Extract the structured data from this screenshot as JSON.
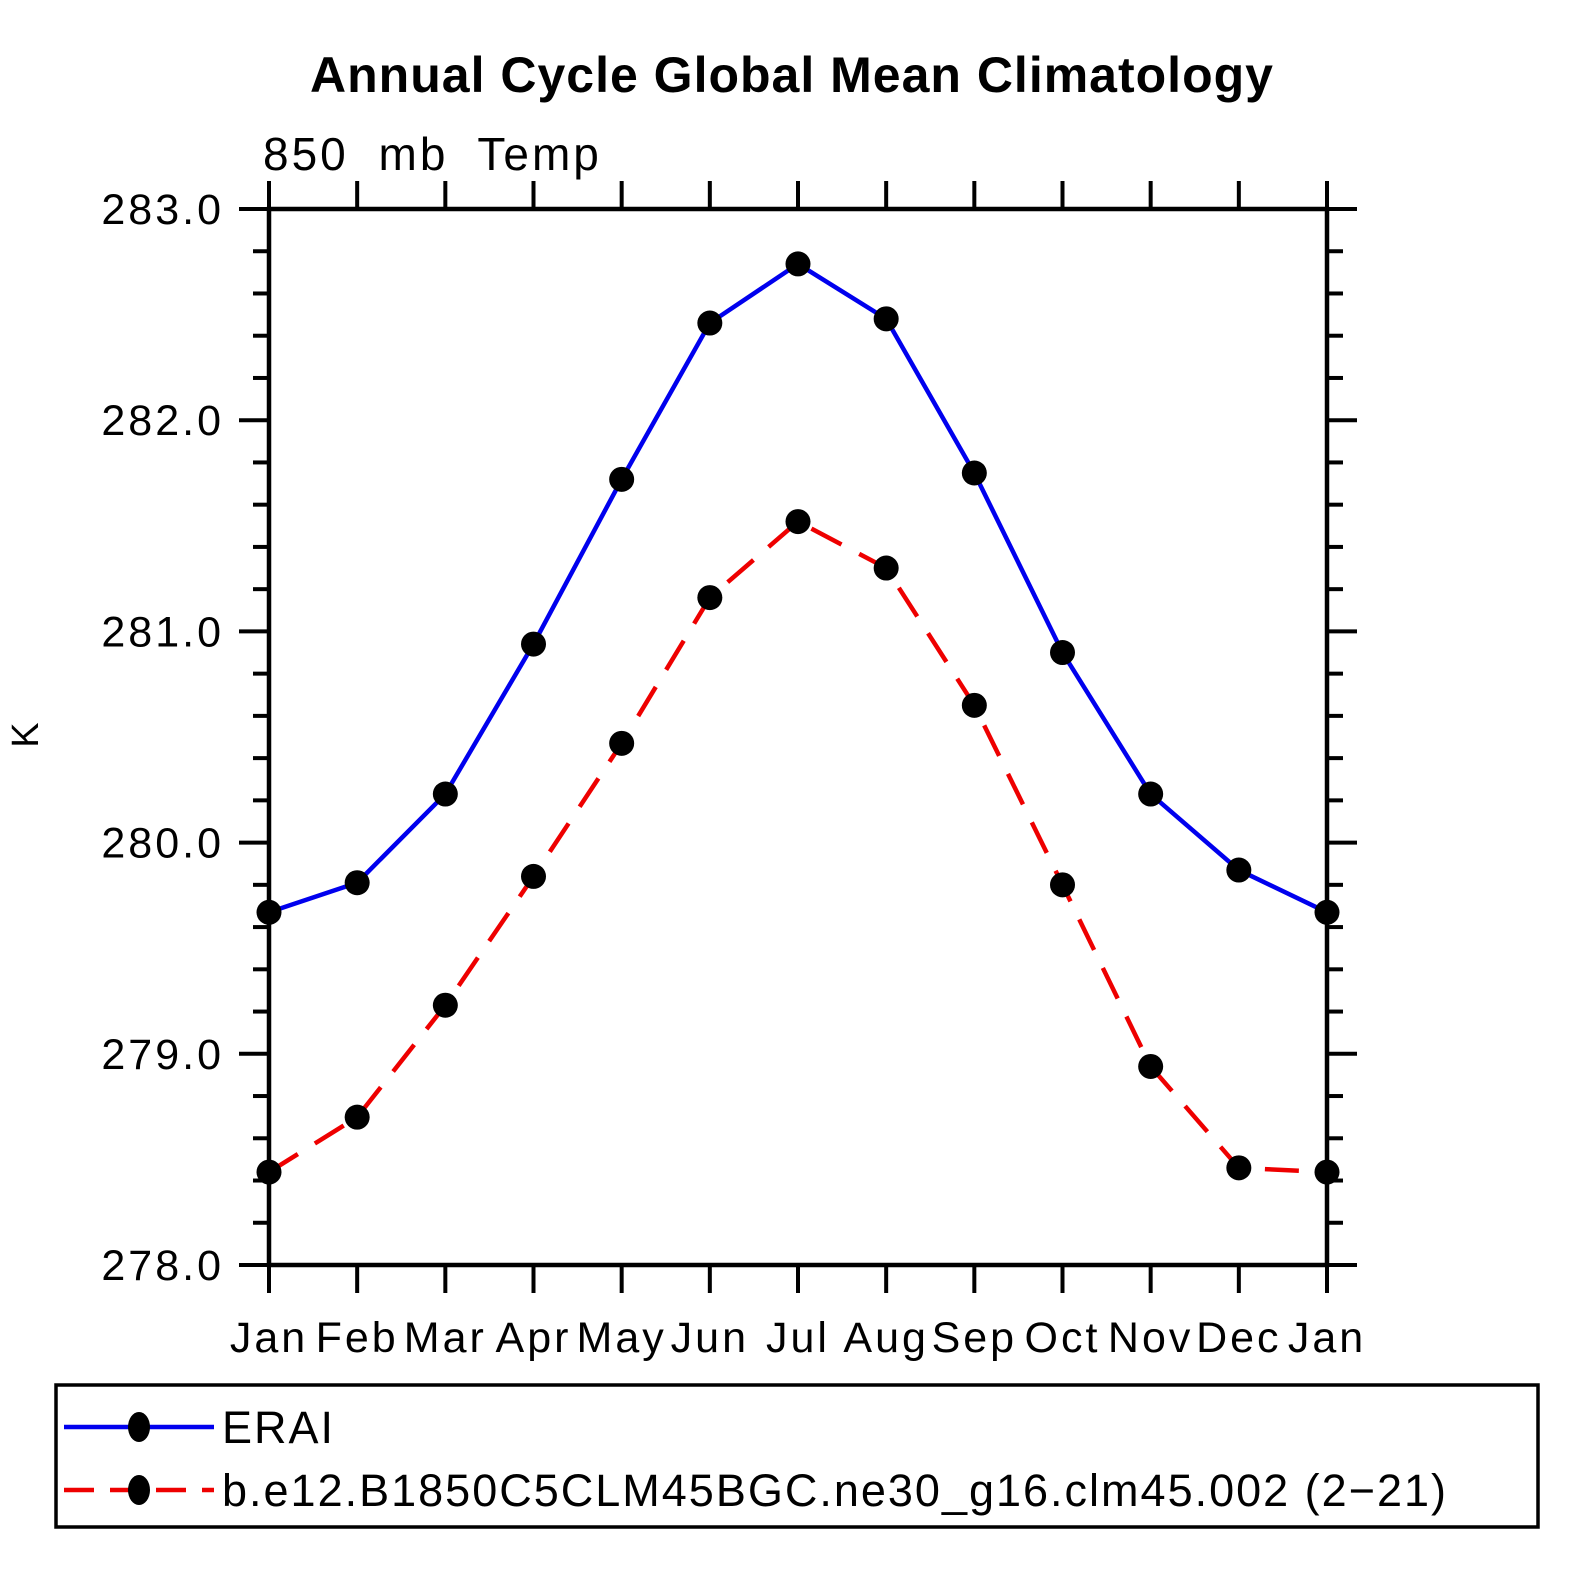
{
  "title": "Annual Cycle Global Mean Climatology",
  "subtitle": "850 mb Temp",
  "ylabel": "K",
  "colors": {
    "erai_line": "#0000ee",
    "model_line": "#ee0000",
    "marker": "#000000",
    "axis": "#000000",
    "background": "#ffffff"
  },
  "chart_data": {
    "type": "line",
    "title": "Annual Cycle Global Mean Climatology",
    "subtitle": "850 mb Temp",
    "xlabel": "",
    "ylabel": "K",
    "categories": [
      "Jan",
      "Feb",
      "Mar",
      "Apr",
      "May",
      "Jun",
      "Jul",
      "Aug",
      "Sep",
      "Oct",
      "Nov",
      "Dec",
      "Jan"
    ],
    "ylim": [
      278.0,
      283.0
    ],
    "ytick_major_interval": 1.0,
    "ytick_minor_interval": 0.2,
    "ytick_labels": [
      "278.0",
      "279.0",
      "280.0",
      "281.0",
      "282.0",
      "283.0"
    ],
    "grid": false,
    "legend_position": "bottom",
    "series": [
      {
        "name": "ERAI",
        "line_style": "solid",
        "color": "#0000ee",
        "marker": "black-dot",
        "values": [
          279.67,
          279.81,
          280.23,
          280.94,
          281.72,
          282.46,
          282.74,
          282.48,
          281.75,
          280.9,
          280.23,
          279.87,
          279.67
        ]
      },
      {
        "name": "b.e12.B1850C5CLM45BGC.ne30_g16.clm45.002 (2−21)",
        "line_style": "dashed",
        "color": "#ee0000",
        "marker": "black-dot",
        "values": [
          278.44,
          278.7,
          279.23,
          279.84,
          280.47,
          281.16,
          281.52,
          281.3,
          280.65,
          279.8,
          278.94,
          278.46,
          278.44
        ]
      }
    ]
  },
  "legend": {
    "entries": [
      {
        "label": "ERAI"
      },
      {
        "label": "b.e12.B1850C5CLM45BGC.ne30_g16.clm45.002 (2−21)"
      }
    ]
  }
}
